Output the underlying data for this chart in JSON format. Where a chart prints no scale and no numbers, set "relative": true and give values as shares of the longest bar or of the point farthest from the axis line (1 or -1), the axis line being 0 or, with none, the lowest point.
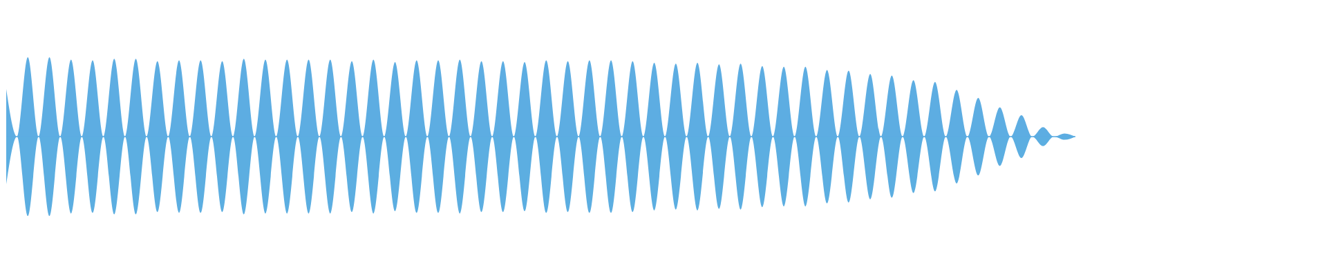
{
  "chart_data": {
    "type": "area",
    "relative": true,
    "ref_lines": [
      {
        "axis": "y",
        "value": 0,
        "color": "#5dade2"
      }
    ],
    "categories": [
      null,
      null,
      null,
      null,
      null,
      null,
      null,
      null,
      null,
      null,
      null,
      null,
      null,
      null,
      null,
      null,
      null,
      null,
      null,
      null,
      null,
      null,
      null,
      null,
      null,
      null,
      null,
      null,
      null,
      null,
      null,
      null,
      null,
      null,
      null,
      null,
      null,
      null,
      null,
      null,
      null,
      null,
      null,
      null,
      null,
      null,
      null,
      null,
      null,
      null,
      null,
      null,
      null,
      null,
      null,
      null,
      null,
      null,
      null,
      null,
      null,
      null,
      null,
      null,
      null,
      null,
      null,
      null,
      null,
      null,
      null,
      null,
      null,
      null,
      null,
      null,
      null,
      null,
      null,
      null,
      null,
      null,
      null,
      null,
      null,
      null,
      null,
      null,
      null,
      null,
      null,
      null,
      null,
      null,
      null,
      null,
      null,
      null,
      null,
      null
    ],
    "series": [
      {
        "color": "#5dade2",
        "values": [
          0.6,
          0,
          1.0,
          0,
          1.0,
          0,
          0.97,
          0,
          0.96,
          0,
          0.98,
          0,
          0.98,
          0,
          0.95,
          0,
          0.96,
          0,
          0.96,
          0,
          0.95,
          0,
          0.98,
          0,
          0.97,
          0,
          0.97,
          0,
          0.97,
          0,
          0.97,
          0,
          0.95,
          0,
          0.97,
          0,
          0.94,
          0,
          0.96,
          0,
          0.96,
          0,
          0.97,
          0,
          0.95,
          0,
          0.95,
          0,
          0.94,
          0,
          0.96,
          0,
          0.95,
          0,
          0.96,
          0,
          0.96,
          0,
          0.95,
          0,
          0.93,
          0,
          0.92,
          0,
          0.93,
          0,
          0.91,
          0,
          0.92,
          0,
          0.89,
          0,
          0.88,
          0,
          0.88,
          0,
          0.84,
          0,
          0.83,
          0,
          0.79,
          0,
          0.77,
          0,
          0.71,
          0,
          0.69,
          0,
          0.59,
          0,
          0.49,
          0,
          0.37,
          0,
          0.27,
          0,
          0.12,
          0,
          0.04,
          0
        ]
      },
      {
        "color": "#5caee1",
        "values": [
          -0.6,
          0,
          -1.0,
          0,
          -1.0,
          0,
          -0.97,
          0,
          -0.96,
          0,
          -0.98,
          0,
          -0.98,
          0,
          -0.95,
          0,
          -0.96,
          0,
          -0.96,
          0,
          -0.95,
          0,
          -0.98,
          0,
          -0.97,
          0,
          -0.97,
          0,
          -0.97,
          0,
          -0.97,
          0,
          -0.95,
          0,
          -0.97,
          0,
          -0.94,
          0,
          -0.96,
          0,
          -0.96,
          0,
          -0.97,
          0,
          -0.95,
          0,
          -0.95,
          0,
          -0.94,
          0,
          -0.96,
          0,
          -0.95,
          0,
          -0.96,
          0,
          -0.96,
          0,
          -0.95,
          0,
          -0.93,
          0,
          -0.92,
          0,
          -0.93,
          0,
          -0.91,
          0,
          -0.92,
          0,
          -0.89,
          0,
          -0.88,
          0,
          -0.88,
          0,
          -0.84,
          0,
          -0.83,
          0,
          -0.79,
          0,
          -0.77,
          0,
          -0.71,
          0,
          -0.69,
          0,
          -0.59,
          0,
          -0.49,
          0,
          -0.37,
          0,
          -0.27,
          0,
          -0.12,
          0,
          -0.04,
          0
        ]
      }
    ]
  }
}
